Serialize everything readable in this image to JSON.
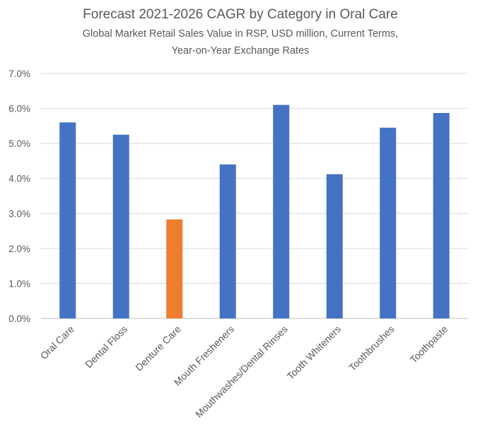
{
  "chart_data": {
    "type": "bar",
    "title": "Forecast 2021-2026 CAGR by Category in Oral Care",
    "subtitle_lines": [
      "Global Market Retail Sales Value in RSP, USD million, Current Terms,",
      "Year-on-Year Exchange Rates"
    ],
    "xlabel": "",
    "ylabel": "",
    "categories": [
      "Oral Care",
      "Dental Floss",
      "Denture Care",
      "Mouth Fresheners",
      "Mouthwashes/Dental Rinses",
      "Tooth Whiteners",
      "Toothbrushes",
      "Toothpaste"
    ],
    "values": [
      5.6,
      5.25,
      2.83,
      4.4,
      6.1,
      4.12,
      5.45,
      5.87
    ],
    "bar_colors": [
      "#4472c4",
      "#4472c4",
      "#ed7d31",
      "#4472c4",
      "#4472c4",
      "#4472c4",
      "#4472c4",
      "#4472c4"
    ],
    "ylim": [
      0,
      7
    ],
    "y_ticks": [
      0,
      1,
      2,
      3,
      4,
      5,
      6,
      7
    ],
    "y_tick_labels": [
      "0.0%",
      "1.0%",
      "2.0%",
      "3.0%",
      "4.0%",
      "5.0%",
      "6.0%",
      "7.0%"
    ],
    "grid": true,
    "legend": "none"
  }
}
